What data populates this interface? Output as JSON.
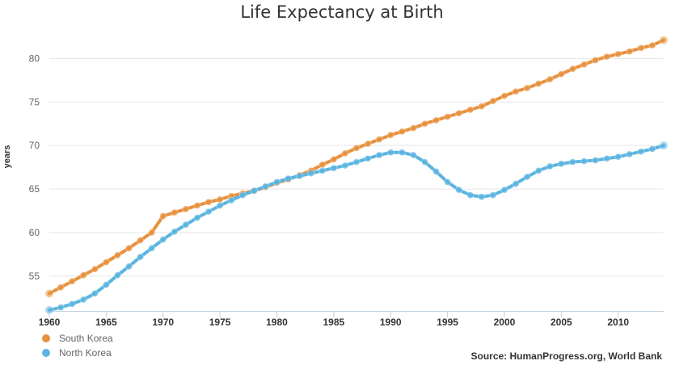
{
  "chart_data": {
    "type": "line",
    "title": "Life Expectancy at Birth",
    "ylabel": "years",
    "xlabel": "",
    "xlim": [
      1960,
      2014
    ],
    "ylim": [
      51,
      83
    ],
    "x_ticks": [
      1960,
      1965,
      1970,
      1975,
      1980,
      1985,
      1990,
      1995,
      2000,
      2005,
      2010
    ],
    "y_ticks": [
      55,
      60,
      65,
      70,
      75,
      80
    ],
    "grid": true,
    "legend_placement": "bottom-left",
    "source": "Source: HumanProgress.org, World Bank",
    "x": [
      1960,
      1961,
      1962,
      1963,
      1964,
      1965,
      1966,
      1967,
      1968,
      1969,
      1970,
      1971,
      1972,
      1973,
      1974,
      1975,
      1976,
      1977,
      1978,
      1979,
      1980,
      1981,
      1982,
      1983,
      1984,
      1985,
      1986,
      1987,
      1988,
      1989,
      1990,
      1991,
      1992,
      1993,
      1994,
      1995,
      1996,
      1997,
      1998,
      1999,
      2000,
      2001,
      2002,
      2003,
      2004,
      2005,
      2006,
      2007,
      2008,
      2009,
      2010,
      2011,
      2012,
      2013,
      2014
    ],
    "series": [
      {
        "name": "South Korea",
        "color": "#e8913e",
        "values": [
          53.0,
          53.7,
          54.4,
          55.1,
          55.8,
          56.6,
          57.4,
          58.2,
          59.1,
          60.0,
          61.9,
          62.3,
          62.7,
          63.1,
          63.5,
          63.8,
          64.2,
          64.5,
          64.8,
          65.2,
          65.7,
          66.1,
          66.6,
          67.1,
          67.8,
          68.4,
          69.1,
          69.7,
          70.2,
          70.7,
          71.2,
          71.6,
          72.0,
          72.5,
          72.9,
          73.3,
          73.7,
          74.1,
          74.5,
          75.1,
          75.7,
          76.2,
          76.6,
          77.1,
          77.6,
          78.2,
          78.8,
          79.3,
          79.8,
          80.2,
          80.5,
          80.8,
          81.2,
          81.5,
          82.1
        ]
      },
      {
        "name": "North Korea",
        "color": "#5bb4e0",
        "values": [
          51.1,
          51.4,
          51.8,
          52.3,
          53.0,
          54.0,
          55.1,
          56.1,
          57.2,
          58.2,
          59.2,
          60.1,
          60.9,
          61.7,
          62.4,
          63.1,
          63.7,
          64.3,
          64.8,
          65.3,
          65.8,
          66.2,
          66.5,
          66.8,
          67.1,
          67.4,
          67.7,
          68.1,
          68.5,
          68.9,
          69.2,
          69.2,
          68.9,
          68.1,
          67.0,
          65.8,
          64.9,
          64.3,
          64.1,
          64.3,
          64.9,
          65.6,
          66.4,
          67.1,
          67.6,
          67.9,
          68.1,
          68.2,
          68.3,
          68.5,
          68.7,
          69.0,
          69.3,
          69.6,
          70.0
        ]
      }
    ]
  }
}
